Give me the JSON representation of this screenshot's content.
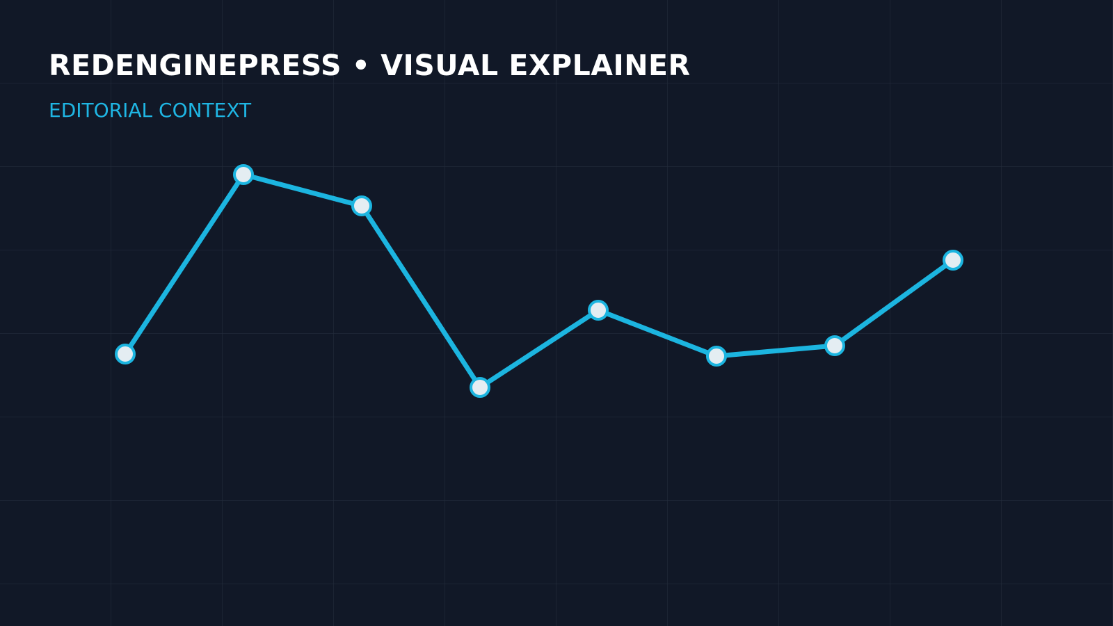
{
  "chart_data": {
    "type": "line",
    "title": "REDENGINEPRESS • VISUAL EXPLAINER",
    "subtitle": "EDITORIAL CONTEXT",
    "series": [
      {
        "color": "#1cb5e0",
        "values": [
          48.5,
          91.5,
          84,
          40.5,
          59,
          48,
          50.5,
          71
        ]
      }
    ],
    "ylim": [
      0,
      100
    ]
  }
}
